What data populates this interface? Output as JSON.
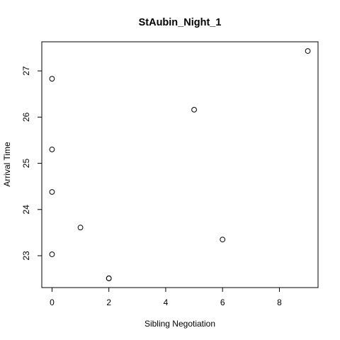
{
  "chart_data": {
    "type": "scatter",
    "title": "StAubin_Night_1",
    "xlabel": "Sibling Negotiation",
    "ylabel": "Arrival Time",
    "xlim": [
      -0.36,
      9.36
    ],
    "ylim": [
      22.31,
      27.63
    ],
    "xticks": [
      0,
      2,
      4,
      6,
      8
    ],
    "yticks": [
      23,
      24,
      25,
      26,
      27
    ],
    "grid": false,
    "legend": "none",
    "marker": "open-circle",
    "points": [
      {
        "x": 0,
        "y": 26.83
      },
      {
        "x": 0,
        "y": 25.3
      },
      {
        "x": 0,
        "y": 24.38
      },
      {
        "x": 0,
        "y": 23.03
      },
      {
        "x": 1,
        "y": 23.61
      },
      {
        "x": 2,
        "y": 22.51
      },
      {
        "x": 2,
        "y": 22.51
      },
      {
        "x": 5,
        "y": 26.16
      },
      {
        "x": 6,
        "y": 23.35
      },
      {
        "x": 9,
        "y": 27.43
      }
    ]
  }
}
